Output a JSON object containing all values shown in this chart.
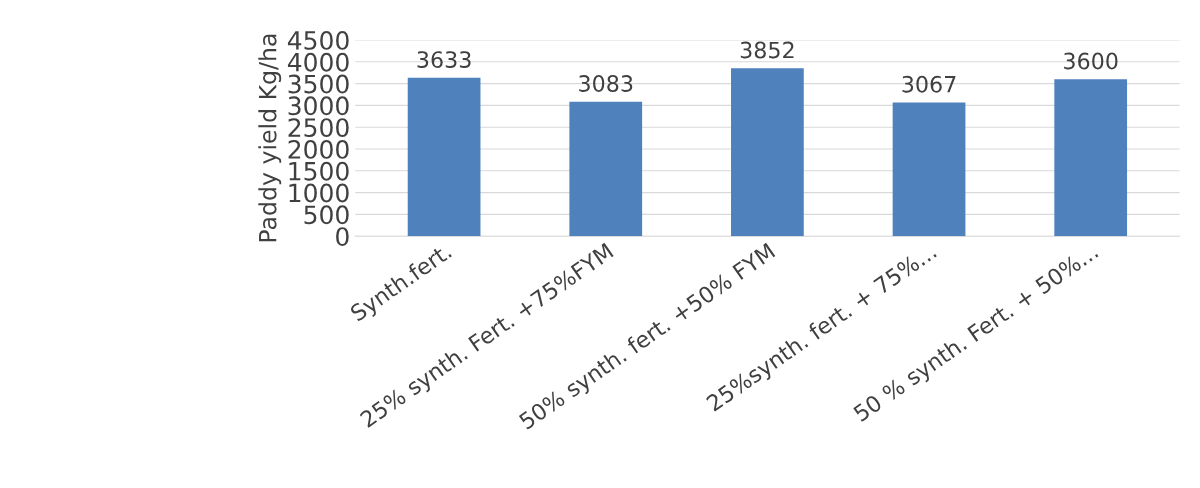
{
  "chart_data": {
    "type": "bar",
    "ylabel": "Paddy yield Kg/ha",
    "categories": [
      "Synth.fert.",
      "25% synth. Fert. +75%FYM",
      "50% synth. fert. +50% FYM",
      "25%synth. fert. + 75%...",
      "50 % synth. Fert. + 50%..."
    ],
    "values": [
      3633,
      3083,
      3852,
      3067,
      3600
    ],
    "color": "#4f81bd",
    "ylim": [
      0,
      4500
    ],
    "yticks": [
      0,
      500,
      1000,
      1500,
      2000,
      2500,
      3000,
      3500,
      4000,
      4500
    ],
    "grid": "y",
    "data_labels": true
  }
}
